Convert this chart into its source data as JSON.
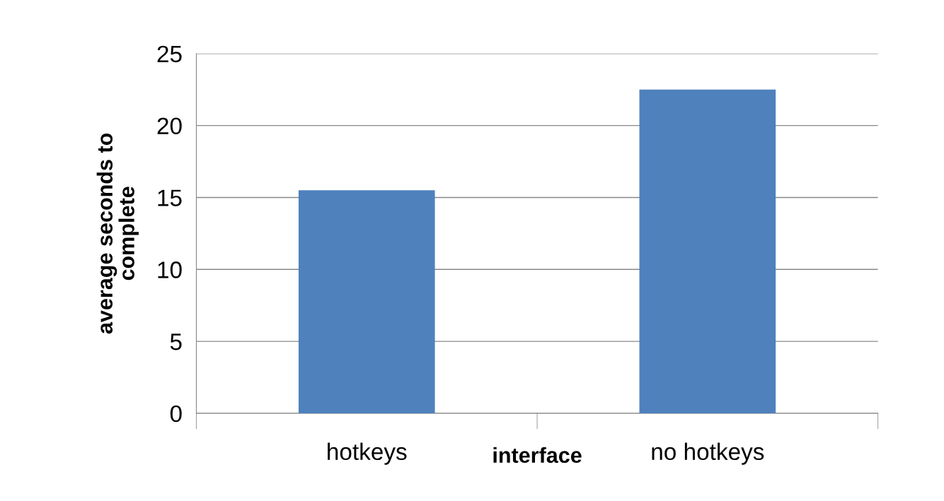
{
  "chart_data": {
    "type": "bar",
    "xlabel": "interface",
    "ylabel": "average seconds to\ncomplete",
    "categories": [
      "hotkeys",
      "no hotkeys"
    ],
    "values": [
      15.5,
      22.5
    ],
    "color": "#4f81bd",
    "ylim": [
      0,
      25
    ],
    "yticks": [
      0,
      5,
      10,
      15,
      20,
      25
    ],
    "grid": "y",
    "legend": false
  }
}
